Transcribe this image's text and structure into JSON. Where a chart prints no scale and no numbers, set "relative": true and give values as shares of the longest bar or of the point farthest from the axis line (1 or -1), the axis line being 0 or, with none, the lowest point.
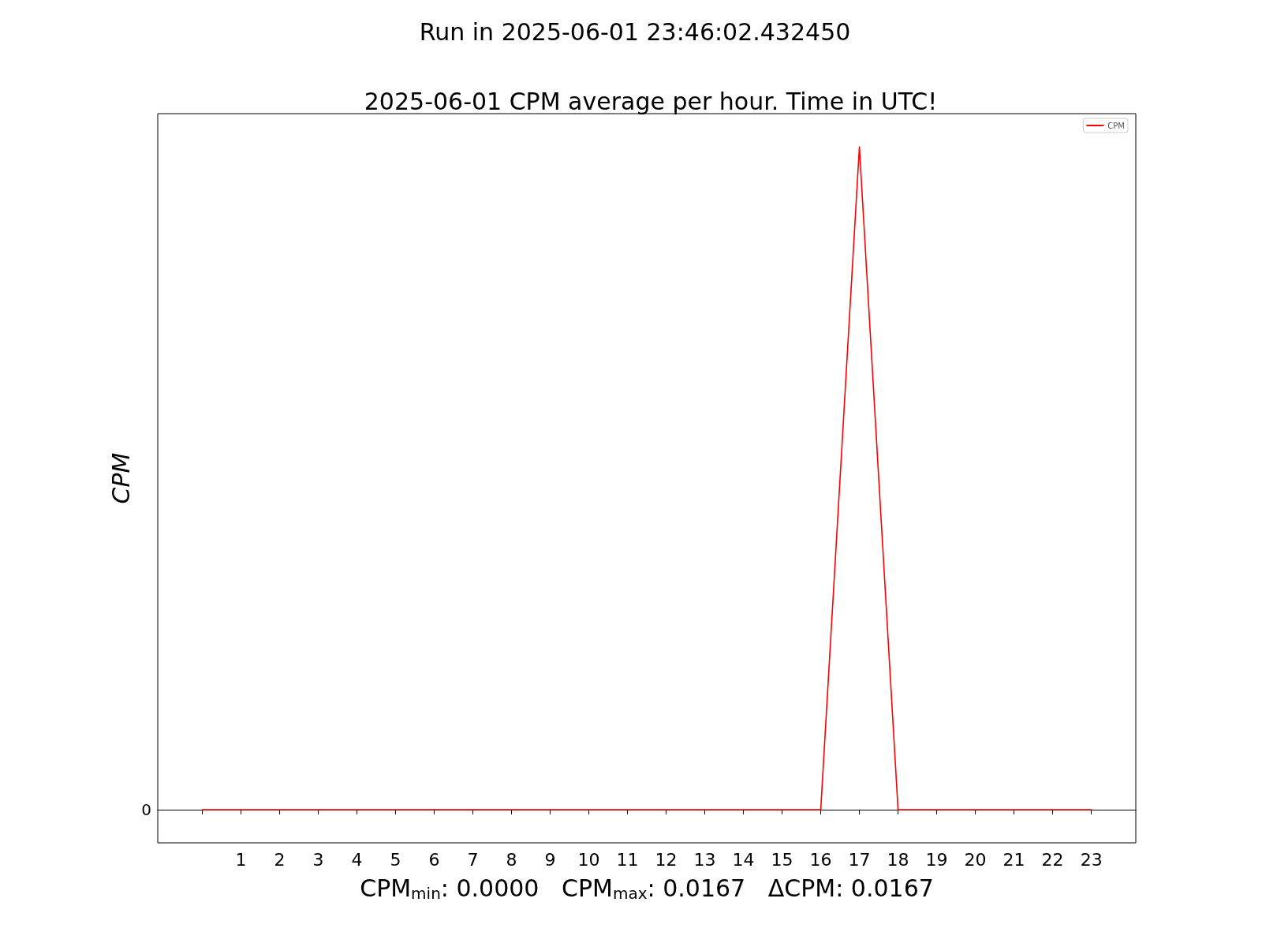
{
  "chart_data": {
    "type": "line",
    "title": "Run in 2025-06-01 23:46:02.432450",
    "subtitle": "2025-06-01 CPM average per hour. Time in UTC!",
    "xlabel": "CPM$_{min}$: 0.0000   CPM$_{max}$: 0.0167   ΔCPM: 0.0167",
    "ylabel": "CPM",
    "x": [
      0,
      1,
      2,
      3,
      4,
      5,
      6,
      7,
      8,
      9,
      10,
      11,
      12,
      13,
      14,
      15,
      16,
      17,
      18,
      19,
      20,
      21,
      22,
      23
    ],
    "series": [
      {
        "name": "CPM",
        "color": "#ff0000",
        "values": [
          0,
          0,
          0,
          0,
          0,
          0,
          0,
          0,
          0,
          0,
          0,
          0,
          0,
          0,
          0,
          0,
          0,
          1,
          0,
          0,
          0,
          0,
          0,
          0
        ]
      }
    ],
    "relative": true,
    "xlim": [
      -1.15,
      24.15
    ],
    "xticks": [
      {
        "value": 0,
        "label": null
      },
      1,
      2,
      3,
      4,
      5,
      6,
      7,
      8,
      9,
      10,
      11,
      12,
      13,
      14,
      15,
      16,
      17,
      18,
      19,
      20,
      21,
      22,
      23
    ],
    "ref_lines": [
      {
        "axis": "y",
        "value": 0,
        "label": "0",
        "color": "#000000"
      }
    ],
    "legend": "top right",
    "grid": false,
    "line_style": "solid"
  }
}
